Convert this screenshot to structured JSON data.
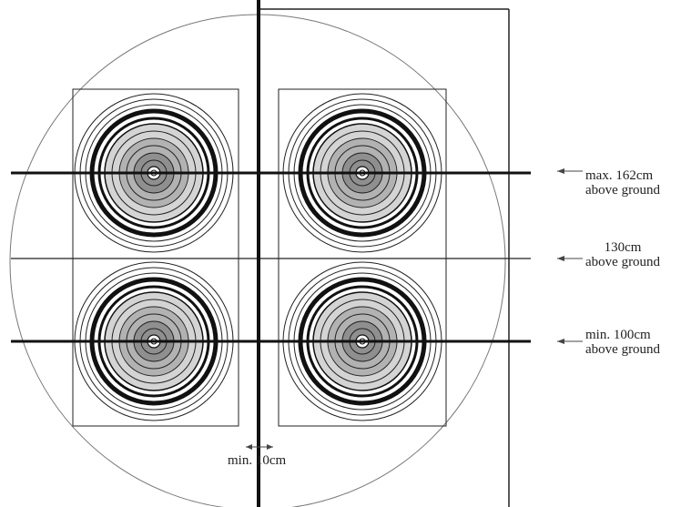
{
  "annotations": {
    "max_height": {
      "line1": "max. 162cm",
      "line2": "above ground"
    },
    "mid_height": {
      "line1": "130cm",
      "line2": "above ground"
    },
    "min_height": {
      "line1": "min. 100cm",
      "line2": "above ground"
    },
    "min_gap": "min. 10cm"
  },
  "targets": [
    {
      "id": "top-left"
    },
    {
      "id": "top-right"
    },
    {
      "id": "bottom-left"
    },
    {
      "id": "bottom-right"
    }
  ],
  "colors": {
    "line": "#111111",
    "thin_line": "#222222",
    "circle_outline": "#777777",
    "ring_light": "#d4d4d4",
    "ring_mid": "#b2b2b2",
    "ring_dark": "#8f8f8f",
    "center": "#ffffff"
  }
}
